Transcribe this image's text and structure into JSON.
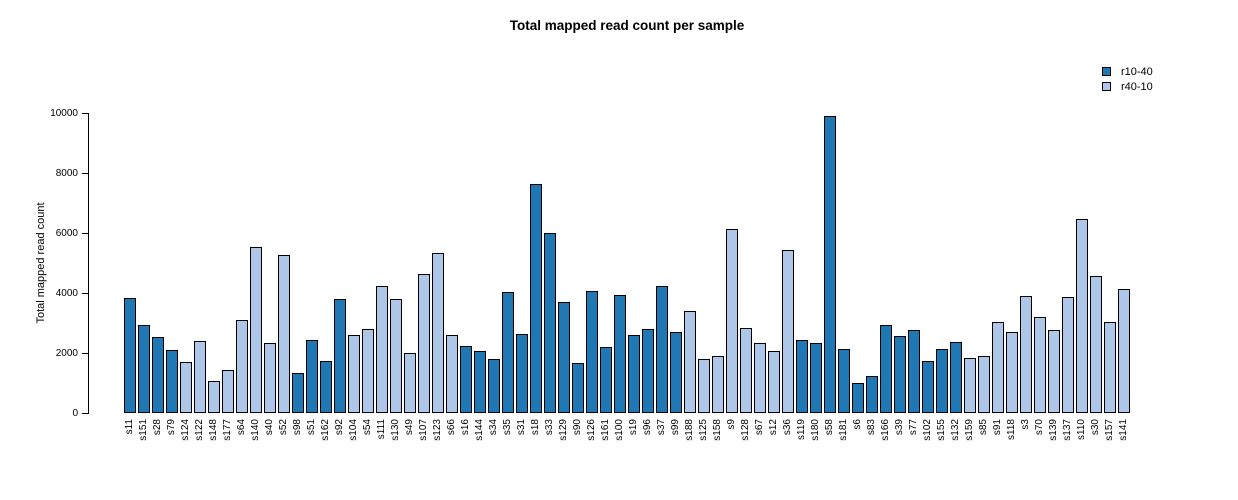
{
  "title": "Total mapped read count per sample",
  "legend": {
    "items": [
      {
        "label": "r10-40",
        "color": "#1f77b4"
      },
      {
        "label": "r40-10",
        "color": "#aec7e8"
      }
    ]
  },
  "chart_data": {
    "type": "bar",
    "title": "Total mapped read count per sample",
    "xlabel": "",
    "ylabel": "Total mapped read count",
    "ylim": [
      0,
      10000
    ],
    "yticks": [
      0,
      2000,
      4000,
      6000,
      8000,
      10000
    ],
    "grid": false,
    "legend_position": "top-right",
    "bar_edge_color": "#000000",
    "series_colors": {
      "r10-40": "#1f77b4",
      "r40-10": "#aec7e8"
    },
    "samples": [
      {
        "name": "s11",
        "group": "r10-40",
        "value": 3850
      },
      {
        "name": "s151",
        "group": "r10-40",
        "value": 2950
      },
      {
        "name": "s28",
        "group": "r10-40",
        "value": 2550
      },
      {
        "name": "s79",
        "group": "r10-40",
        "value": 2100
      },
      {
        "name": "s124",
        "group": "r40-10",
        "value": 1700
      },
      {
        "name": "s122",
        "group": "r40-10",
        "value": 2400
      },
      {
        "name": "s148",
        "group": "r40-10",
        "value": 1080
      },
      {
        "name": "s177",
        "group": "r40-10",
        "value": 1420
      },
      {
        "name": "s64",
        "group": "r40-10",
        "value": 3100
      },
      {
        "name": "s140",
        "group": "r40-10",
        "value": 5530
      },
      {
        "name": "s40",
        "group": "r40-10",
        "value": 2340
      },
      {
        "name": "s52",
        "group": "r40-10",
        "value": 5280
      },
      {
        "name": "s98",
        "group": "r10-40",
        "value": 1330
      },
      {
        "name": "s51",
        "group": "r10-40",
        "value": 2420
      },
      {
        "name": "s162",
        "group": "r10-40",
        "value": 1750
      },
      {
        "name": "s92",
        "group": "r10-40",
        "value": 3810
      },
      {
        "name": "s104",
        "group": "r40-10",
        "value": 2610
      },
      {
        "name": "s54",
        "group": "r40-10",
        "value": 2790
      },
      {
        "name": "s111",
        "group": "r40-10",
        "value": 4240
      },
      {
        "name": "s130",
        "group": "r40-10",
        "value": 3790
      },
      {
        "name": "s49",
        "group": "r40-10",
        "value": 1990
      },
      {
        "name": "s107",
        "group": "r40-10",
        "value": 4620
      },
      {
        "name": "s123",
        "group": "r40-10",
        "value": 5350
      },
      {
        "name": "s66",
        "group": "r40-10",
        "value": 2610
      },
      {
        "name": "s16",
        "group": "r10-40",
        "value": 2230
      },
      {
        "name": "s144",
        "group": "r10-40",
        "value": 2060
      },
      {
        "name": "s34",
        "group": "r10-40",
        "value": 1810
      },
      {
        "name": "s35",
        "group": "r10-40",
        "value": 4050
      },
      {
        "name": "s31",
        "group": "r10-40",
        "value": 2650
      },
      {
        "name": "s18",
        "group": "r10-40",
        "value": 7620
      },
      {
        "name": "s33",
        "group": "r10-40",
        "value": 5990
      },
      {
        "name": "s129",
        "group": "r10-40",
        "value": 3690
      },
      {
        "name": "s90",
        "group": "r10-40",
        "value": 1660
      },
      {
        "name": "s126",
        "group": "r10-40",
        "value": 4080
      },
      {
        "name": "s161",
        "group": "r10-40",
        "value": 2210
      },
      {
        "name": "s100",
        "group": "r10-40",
        "value": 3950
      },
      {
        "name": "s19",
        "group": "r10-40",
        "value": 2610
      },
      {
        "name": "s96",
        "group": "r10-40",
        "value": 2810
      },
      {
        "name": "s37",
        "group": "r10-40",
        "value": 4240
      },
      {
        "name": "s99",
        "group": "r10-40",
        "value": 2710
      },
      {
        "name": "s188",
        "group": "r40-10",
        "value": 3410
      },
      {
        "name": "s125",
        "group": "r40-10",
        "value": 1810
      },
      {
        "name": "s158",
        "group": "r40-10",
        "value": 1890
      },
      {
        "name": "s9",
        "group": "r40-10",
        "value": 6120
      },
      {
        "name": "s128",
        "group": "r40-10",
        "value": 2820
      },
      {
        "name": "s67",
        "group": "r40-10",
        "value": 2340
      },
      {
        "name": "s12",
        "group": "r40-10",
        "value": 2080
      },
      {
        "name": "s36",
        "group": "r40-10",
        "value": 5450
      },
      {
        "name": "s119",
        "group": "r10-40",
        "value": 2450
      },
      {
        "name": "s180",
        "group": "r10-40",
        "value": 2320
      },
      {
        "name": "s58",
        "group": "r10-40",
        "value": 9900
      },
      {
        "name": "s181",
        "group": "r10-40",
        "value": 2140
      },
      {
        "name": "s6",
        "group": "r10-40",
        "value": 990
      },
      {
        "name": "s83",
        "group": "r10-40",
        "value": 1240
      },
      {
        "name": "s166",
        "group": "r10-40",
        "value": 2930
      },
      {
        "name": "s39",
        "group": "r10-40",
        "value": 2570
      },
      {
        "name": "s77",
        "group": "r10-40",
        "value": 2760
      },
      {
        "name": "s102",
        "group": "r10-40",
        "value": 1740
      },
      {
        "name": "s155",
        "group": "r10-40",
        "value": 2150
      },
      {
        "name": "s132",
        "group": "r10-40",
        "value": 2380
      },
      {
        "name": "s159",
        "group": "r40-10",
        "value": 1820
      },
      {
        "name": "s85",
        "group": "r40-10",
        "value": 1910
      },
      {
        "name": "s91",
        "group": "r40-10",
        "value": 3020
      },
      {
        "name": "s118",
        "group": "r40-10",
        "value": 2690
      },
      {
        "name": "s3",
        "group": "r40-10",
        "value": 3910
      },
      {
        "name": "s70",
        "group": "r40-10",
        "value": 3200
      },
      {
        "name": "s139",
        "group": "r40-10",
        "value": 2780
      },
      {
        "name": "s137",
        "group": "r40-10",
        "value": 3880
      },
      {
        "name": "s110",
        "group": "r40-10",
        "value": 6460
      },
      {
        "name": "s30",
        "group": "r40-10",
        "value": 4560
      },
      {
        "name": "s157",
        "group": "r40-10",
        "value": 3020
      },
      {
        "name": "s141",
        "group": "r40-10",
        "value": 4120
      }
    ]
  }
}
